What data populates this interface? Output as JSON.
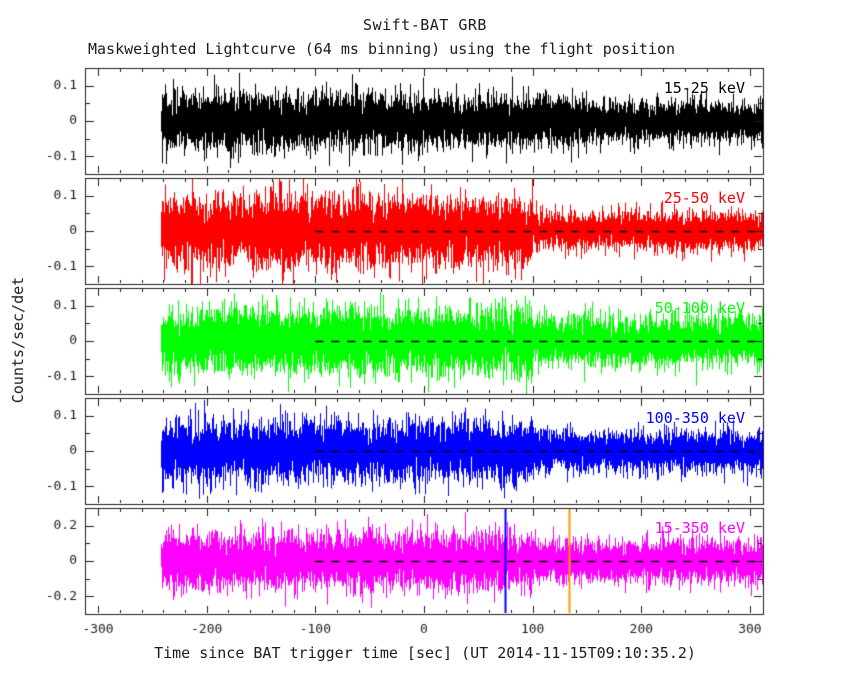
{
  "chart_data": {
    "type": "line",
    "title": "Swift-BAT GRB",
    "subtitle": "Maskweighted Lightcurve (64 ms binning) using the flight position",
    "xlabel": "Time since BAT trigger time [sec] (UT 2014-11-15T09:10:35.2)",
    "ylabel": "Counts/sec/det",
    "x_range": [
      -312,
      312
    ],
    "x_ticks": [
      -300,
      -200,
      -100,
      0,
      100,
      200,
      300
    ],
    "x_tick_labels": [
      "-300",
      "-200",
      "-100",
      "0",
      "100",
      "200",
      "300"
    ],
    "x_minor_step": 20,
    "data_time_start": -242,
    "data_time_end": 311,
    "binning_ms": 64,
    "samples_per_pixel": 14,
    "seed": 20141115,
    "frame_color": "#1c1c1c",
    "text_color": "#1c1c1c",
    "grid": false,
    "zero_line": {
      "style": "dashed",
      "color": "#000000",
      "from": -100,
      "to": 312
    },
    "panels": [
      {
        "label": "15-25 keV",
        "color": "#000000",
        "ylim": [
          -0.15,
          0.15
        ],
        "yticks": [
          0.1,
          0,
          -0.1
        ],
        "ytick_labels": [
          "0.1",
          "0",
          "-0.1"
        ],
        "y_minor_step": 0.05,
        "noise_sigma": [
          {
            "from": -242,
            "to": 0,
            "sigma": 0.04
          },
          {
            "from": 0,
            "to": 150,
            "sigma": 0.035
          },
          {
            "from": 150,
            "to": 311,
            "sigma": 0.028
          }
        ],
        "markers": []
      },
      {
        "label": "25-50 keV",
        "color": "#ff0000",
        "ylim": [
          -0.15,
          0.15
        ],
        "yticks": [
          0.1,
          0,
          -0.1
        ],
        "ytick_labels": [
          "0.1",
          "0",
          "-0.1"
        ],
        "y_minor_step": 0.05,
        "noise_sigma": [
          {
            "from": -242,
            "to": 100,
            "sigma": 0.048
          },
          {
            "from": 100,
            "to": 311,
            "sigma": 0.026
          }
        ],
        "markers": []
      },
      {
        "label": "50-100 keV",
        "color": "#00ff00",
        "ylim": [
          -0.15,
          0.15
        ],
        "yticks": [
          0.1,
          0,
          -0.1
        ],
        "ytick_labels": [
          "0.1",
          "0",
          "-0.1"
        ],
        "y_minor_step": 0.05,
        "noise_sigma": [
          {
            "from": -242,
            "to": 100,
            "sigma": 0.044
          },
          {
            "from": 100,
            "to": 311,
            "sigma": 0.034
          }
        ],
        "markers": []
      },
      {
        "label": "100-350 keV",
        "color": "#0000ff",
        "ylim": [
          -0.15,
          0.15
        ],
        "yticks": [
          0.1,
          0,
          -0.1
        ],
        "ytick_labels": [
          "0.1",
          "0",
          "-0.1"
        ],
        "y_minor_step": 0.05,
        "noise_sigma": [
          {
            "from": -242,
            "to": 100,
            "sigma": 0.042
          },
          {
            "from": 100,
            "to": 311,
            "sigma": 0.028
          }
        ],
        "markers": []
      },
      {
        "label": "15-350 keV",
        "color": "#ff00ff",
        "ylim": [
          -0.3,
          0.3
        ],
        "yticks": [
          0.2,
          0,
          -0.2
        ],
        "ytick_labels": [
          "0.2",
          "0",
          "-0.2"
        ],
        "y_minor_step": 0.1,
        "noise_sigma": [
          {
            "from": -242,
            "to": 100,
            "sigma": 0.078
          },
          {
            "from": 100,
            "to": 311,
            "sigma": 0.058
          }
        ],
        "markers": [
          {
            "t": 75,
            "color": "#0000ff"
          },
          {
            "t": 133,
            "color": "#ff9900"
          }
        ]
      }
    ]
  }
}
